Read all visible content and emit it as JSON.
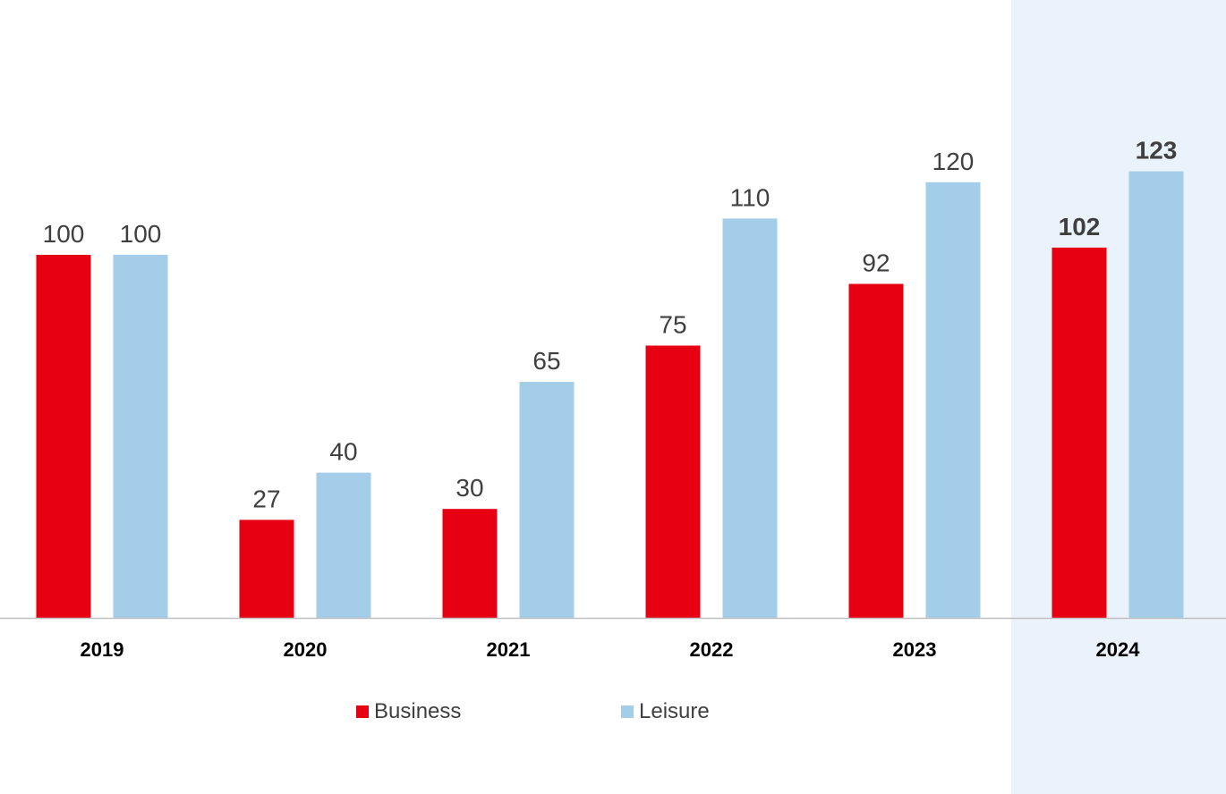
{
  "chart_data": {
    "type": "bar",
    "categories": [
      "2019",
      "2020",
      "2021",
      "2022",
      "2023",
      "2024"
    ],
    "series": [
      {
        "name": "Business",
        "color": "#e60012",
        "values": [
          100,
          27,
          30,
          75,
          92,
          102
        ]
      },
      {
        "name": "Leisure",
        "color": "#a4cde9",
        "values": [
          100,
          40,
          65,
          110,
          120,
          123
        ]
      }
    ],
    "highlight": {
      "category": "2024",
      "background_color": "#eaf3fb",
      "label_colors": [
        "#e60012",
        "#3f3f3f"
      ]
    },
    "title": "",
    "xlabel": "",
    "ylabel": "",
    "ylim": [
      0,
      168
    ],
    "grid": false,
    "legend_position": "bottom-center",
    "data_labels": true,
    "axis_color": "#bfbfbf"
  }
}
